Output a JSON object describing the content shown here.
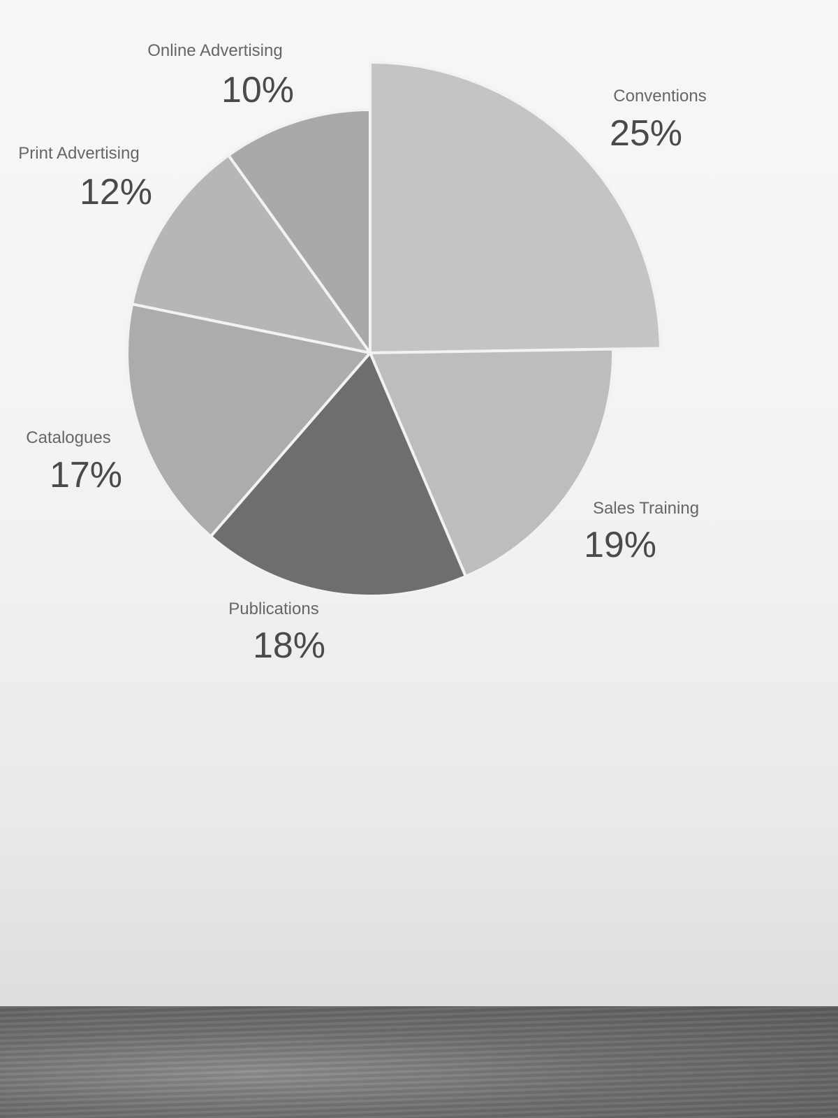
{
  "chart_data": {
    "type": "pie",
    "title": "",
    "slices": [
      {
        "label": "Conventions",
        "value": 25,
        "pct_text": "25%",
        "color": "#c4c4c4",
        "exploded": true
      },
      {
        "label": "Sales Training",
        "value": 19,
        "pct_text": "19%",
        "color": "#bdbdbd",
        "exploded": false
      },
      {
        "label": "Publications",
        "value": 18,
        "pct_text": "18%",
        "color": "#6e6e6e",
        "exploded": false
      },
      {
        "label": "Catalogues",
        "value": 17,
        "pct_text": "17%",
        "color": "#acacac",
        "exploded": false
      },
      {
        "label": "Print Advertising",
        "value": 12,
        "pct_text": "12%",
        "color": "#b6b6b6",
        "exploded": false
      },
      {
        "label": "Online Advertising",
        "value": 10,
        "pct_text": "10%",
        "color": "#a9a9a9",
        "exploded": false
      }
    ],
    "start_angle_deg": 0,
    "direction": "clockwise",
    "legend": "none"
  }
}
